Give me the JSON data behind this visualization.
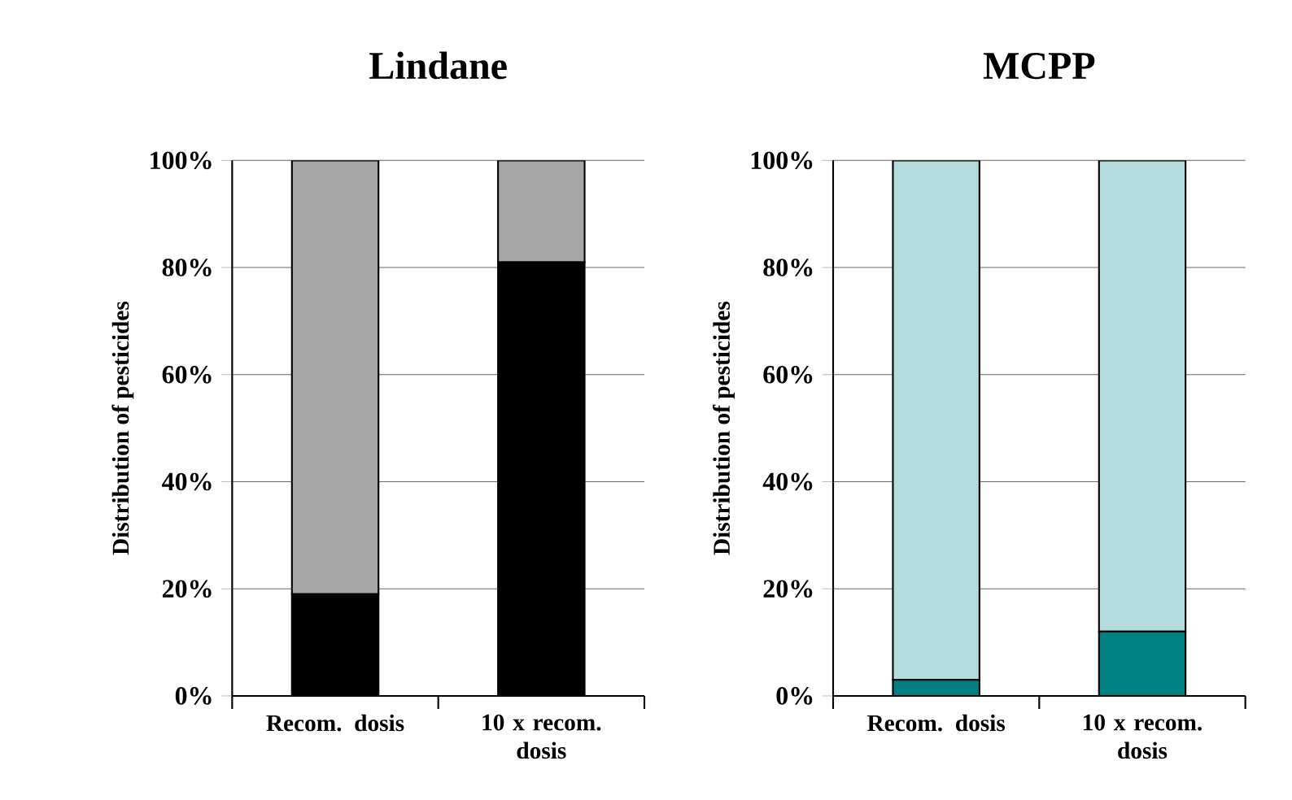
{
  "chart_data": [
    {
      "type": "bar",
      "stacked": true,
      "title": "Lindane",
      "ylabel": "Distribution of pesticides",
      "categories": [
        "Recom. dosis",
        "10 x recom. dosis"
      ],
      "series": [
        {
          "color": "#000000",
          "values": [
            19,
            81
          ]
        },
        {
          "color": "#a6a6a6",
          "values": [
            81,
            19
          ]
        }
      ],
      "ylim": [
        0,
        100
      ],
      "yticks": [
        {
          "value": 0,
          "label": "0%"
        },
        {
          "value": 20,
          "label": "20%"
        },
        {
          "value": 40,
          "label": "40%"
        },
        {
          "value": 60,
          "label": "60%"
        },
        {
          "value": 80,
          "label": "80%"
        },
        {
          "value": 100,
          "label": "100%"
        }
      ],
      "grid": "y"
    },
    {
      "type": "bar",
      "stacked": true,
      "title": "MCPP",
      "ylabel": "Distribution of pesticides",
      "categories": [
        "Recom. dosis",
        "10 x recom. dosis"
      ],
      "series": [
        {
          "color": "#008080",
          "values": [
            3,
            12
          ]
        },
        {
          "color": "#b4dcdc",
          "values": [
            97,
            88
          ]
        }
      ],
      "ylim": [
        0,
        100
      ],
      "yticks": [
        {
          "value": 0,
          "label": "0%"
        },
        {
          "value": 20,
          "label": "20%"
        },
        {
          "value": 40,
          "label": "40%"
        },
        {
          "value": 60,
          "label": "60%"
        },
        {
          "value": 80,
          "label": "80%"
        },
        {
          "value": 100,
          "label": "100%"
        }
      ],
      "grid": "y"
    }
  ]
}
